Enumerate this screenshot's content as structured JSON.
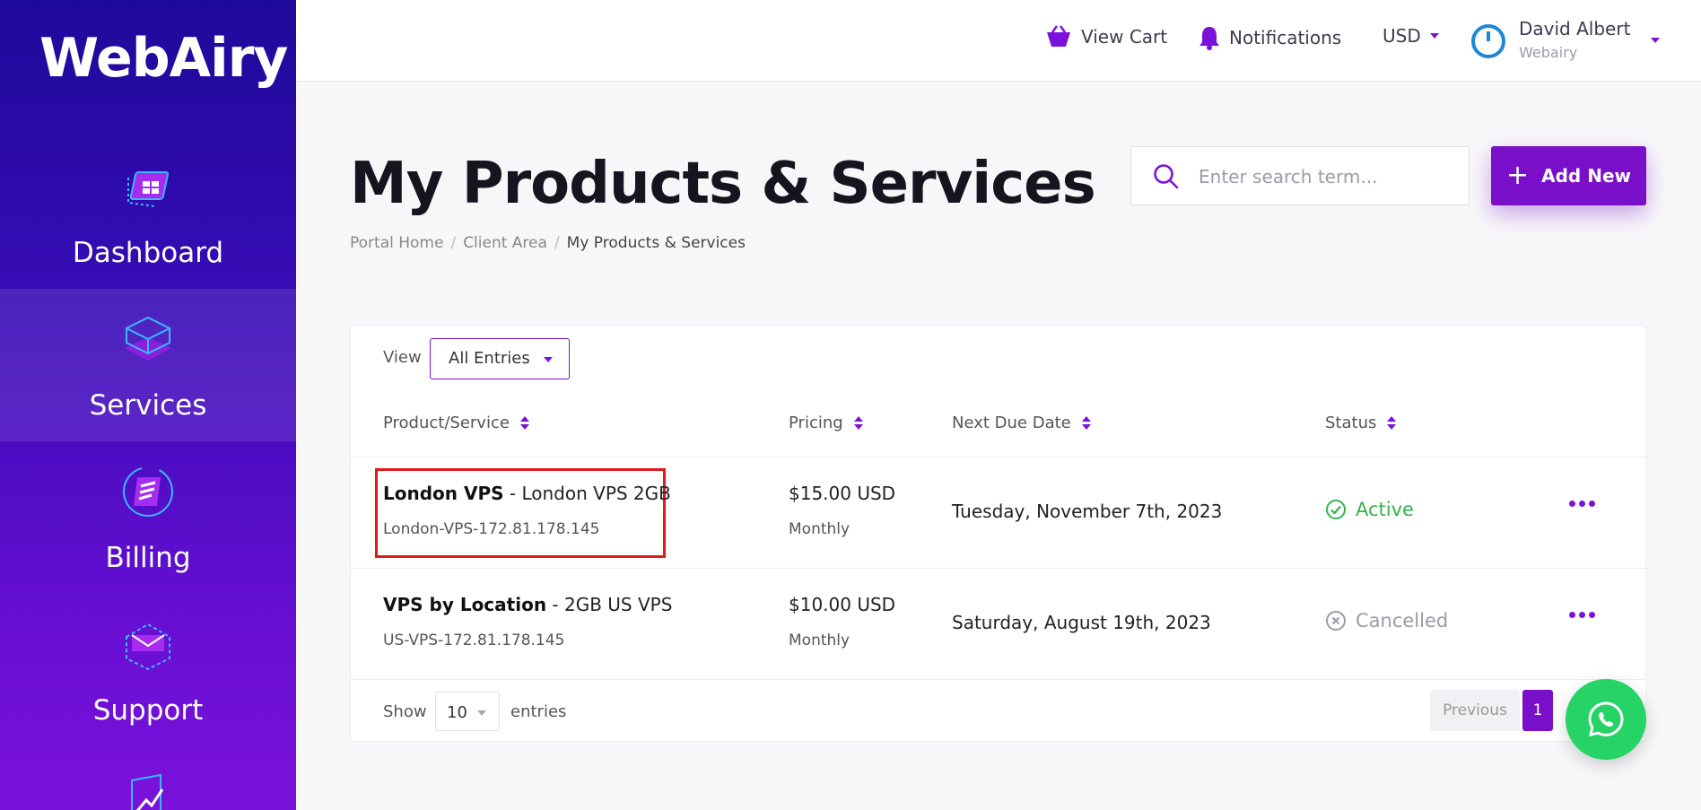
{
  "brand": {
    "logo_text": "WebAiry"
  },
  "sidebar": {
    "items": [
      {
        "label": "Dashboard",
        "icon": "dashboard-icon",
        "active": false
      },
      {
        "label": "Services",
        "icon": "services-box-icon",
        "active": true
      },
      {
        "label": "Billing",
        "icon": "billing-icon",
        "active": false
      },
      {
        "label": "Support",
        "icon": "support-envelope-icon",
        "active": false
      }
    ]
  },
  "header": {
    "cart_label": "View Cart",
    "notifications_label": "Notifications",
    "currency": "USD",
    "user": {
      "name": "David Albert",
      "org": "Webairy"
    }
  },
  "page": {
    "title": "My Products & Services",
    "breadcrumb": [
      "Portal Home",
      "Client Area",
      "My Products & Services"
    ],
    "search_placeholder": "Enter search term...",
    "add_new_label": "Add New"
  },
  "table": {
    "view_label": "View",
    "view_filter": "All Entries",
    "columns": [
      "Product/Service",
      "Pricing",
      "Next Due Date",
      "Status"
    ],
    "rows": [
      {
        "product": "London VPS",
        "product_detail": " - London VPS 2GB",
        "hostname": "London-VPS-172.81.178.145",
        "price": "$15.00 USD",
        "cycle": "Monthly",
        "due": "Tuesday, November 7th, 2023",
        "status": "Active"
      },
      {
        "product": "VPS by Location",
        "product_detail": " - 2GB US VPS",
        "hostname": "US-VPS-172.81.178.145",
        "price": "$10.00 USD",
        "cycle": "Monthly",
        "due": "Saturday, August 19th, 2023",
        "status": "Cancelled"
      }
    ],
    "footer": {
      "show_label": "Show",
      "page_size": "10",
      "entries_label": "entries",
      "previous_label": "Previous",
      "current_page": "1"
    }
  },
  "colors": {
    "accent": "#7a0fc9",
    "status_active": "#35b24a",
    "status_cancelled": "#9a9aa8",
    "highlight": "#e01919",
    "whatsapp": "#25d366"
  }
}
